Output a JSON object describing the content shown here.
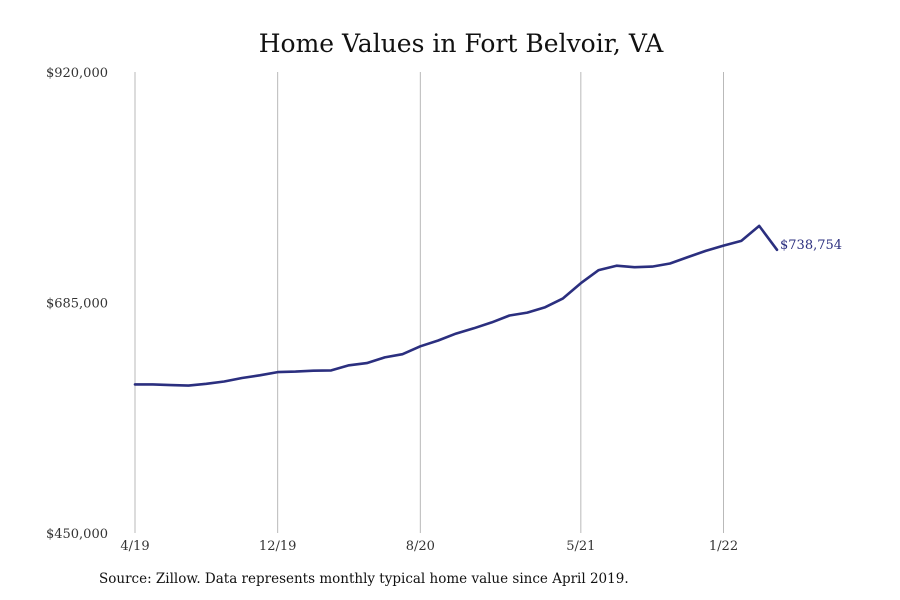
{
  "source_note": "Source: Zillow. Data represents monthly typical home value since April 2019.",
  "colors": {
    "line": "#2b2f7f",
    "grid": "#b9b9b9"
  },
  "chart_data": {
    "type": "line",
    "title": "Home Values in Fort Belvoir, VA",
    "xlabel": "",
    "ylabel": "",
    "y_ticks": [
      {
        "value": 450000,
        "label": "$450,000"
      },
      {
        "value": 685000,
        "label": "$685,000"
      },
      {
        "value": 920000,
        "label": "$920,000"
      }
    ],
    "x_ticks": [
      {
        "month": "2019-04",
        "label": "4/19"
      },
      {
        "month": "2019-12",
        "label": "12/19"
      },
      {
        "month": "2020-08",
        "label": "8/20"
      },
      {
        "month": "2021-05",
        "label": "5/21"
      },
      {
        "month": "2022-01",
        "label": "1/22"
      }
    ],
    "ylim": [
      450000,
      920000
    ],
    "xlim": [
      "2019-04",
      "2022-04"
    ],
    "grid": {
      "vertical": true,
      "horizontal": false
    },
    "legend": "none",
    "end_label": "$738,754",
    "series": [
      {
        "x": [
          "2019-04",
          "2019-05",
          "2019-06",
          "2019-07",
          "2019-08",
          "2019-09",
          "2019-10",
          "2019-11",
          "2019-12",
          "2020-01",
          "2020-02",
          "2020-03",
          "2020-04",
          "2020-05",
          "2020-06",
          "2020-07",
          "2020-08",
          "2020-09",
          "2020-10",
          "2020-11",
          "2020-12",
          "2021-01",
          "2021-02",
          "2021-03",
          "2021-04",
          "2021-05",
          "2021-06",
          "2021-07",
          "2021-08",
          "2021-09",
          "2021-10",
          "2021-11",
          "2021-12",
          "2022-01",
          "2022-02",
          "2022-03",
          "2022-04"
        ],
        "values": [
          601500,
          601500,
          600800,
          600300,
          602100,
          604500,
          608000,
          610800,
          614000,
          614500,
          615500,
          615800,
          621000,
          623200,
          629000,
          632300,
          640300,
          646300,
          653300,
          658700,
          664700,
          671700,
          674700,
          680200,
          689200,
          704700,
          718000,
          722500,
          721000,
          721600,
          724800,
          731300,
          737600,
          743000,
          747800,
          763100,
          738754
        ]
      }
    ]
  }
}
